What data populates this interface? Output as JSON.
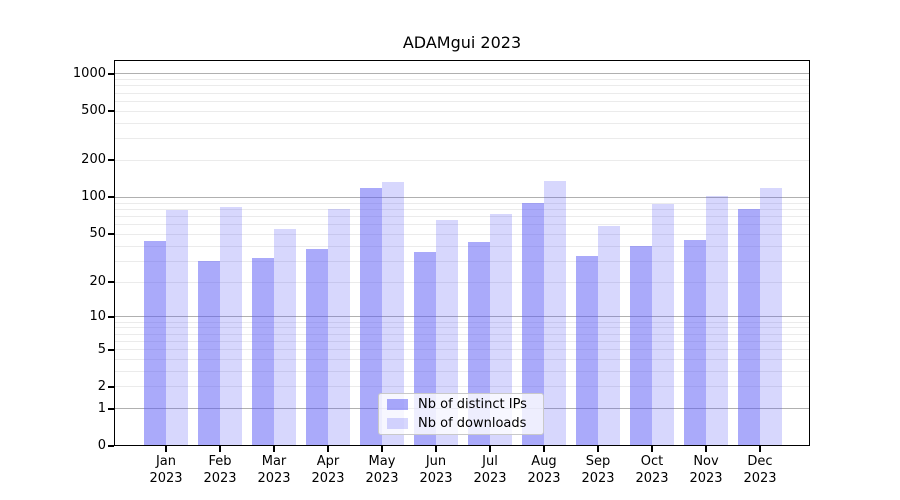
{
  "title": "ADAMgui 2023",
  "chart_data": {
    "type": "bar",
    "title": "ADAMgui 2023",
    "y_scale": "log(1+x)",
    "categories": [
      "Jan 2023",
      "Feb 2023",
      "Mar 2023",
      "Apr 2023",
      "May 2023",
      "Jun 2023",
      "Jul 2023",
      "Aug 2023",
      "Sep 2023",
      "Oct 2023",
      "Nov 2023",
      "Dec 2023"
    ],
    "series": [
      {
        "name": "Nb of distinct IPs",
        "color": "rgba(85,85,245,0.50)",
        "values": [
          44,
          30,
          32,
          38,
          119,
          36,
          43,
          91,
          33,
          40,
          45,
          81
        ]
      },
      {
        "name": "Nb of downloads",
        "color": "rgba(85,85,245,0.235)",
        "values": [
          79,
          83,
          55,
          81,
          134,
          65,
          74,
          136,
          58,
          89,
          102,
          120
        ]
      }
    ],
    "yticks": [
      0,
      1,
      2,
      5,
      10,
      20,
      50,
      100,
      200,
      500,
      1000
    ],
    "ylim": [
      0,
      1300
    ],
    "grid": true,
    "legend_position": "lower center",
    "colors": {
      "grid_major": "#b0b0b0",
      "grid_minor": "#ebebeb",
      "axis": "#000000",
      "bar_base": "#5555f5"
    }
  }
}
